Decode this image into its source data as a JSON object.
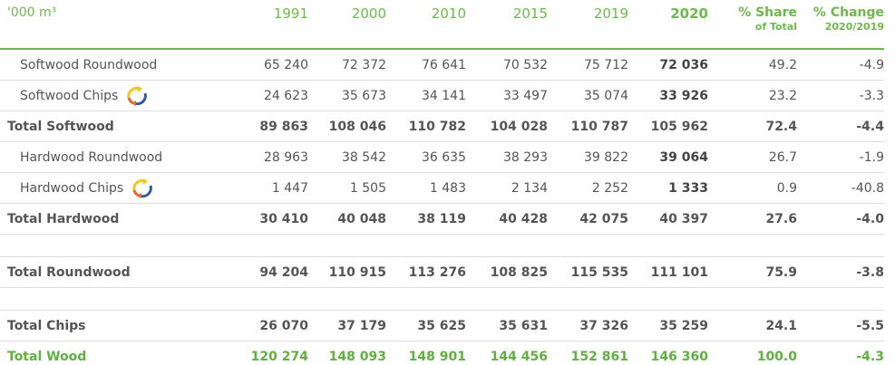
{
  "table": {
    "header": {
      "unit": "'000 m³",
      "years": [
        "1991",
        "2000",
        "2010",
        "2015",
        "2019",
        "2020"
      ],
      "share": [
        "% Share",
        "of Total"
      ],
      "change": [
        "% Change",
        "2020/2019"
      ]
    },
    "rows": [
      {
        "label": "Softwood Roundwood",
        "values": [
          "65 240",
          "72 372",
          "76 641",
          "70 532",
          "75 712",
          "72 036",
          "49.2",
          "-4.9"
        ]
      },
      {
        "label": "Softwood Chips",
        "values": [
          "24 623",
          "35 673",
          "34 141",
          "33 497",
          "35 074",
          "33 926",
          "23.2",
          "-3.3"
        ]
      },
      {
        "label": "Total Softwood",
        "values": [
          "89 863",
          "108 046",
          "110 782",
          "104 028",
          "110 787",
          "105 962",
          "72.4",
          "-4.4"
        ]
      },
      {
        "label": "Hardwood Roundwood",
        "values": [
          "28 963",
          "38 542",
          "36 635",
          "38 293",
          "39 822",
          "39 064",
          "26.7",
          "-1.9"
        ]
      },
      {
        "label": "Hardwood Chips",
        "values": [
          "1 447",
          "1 505",
          "1 483",
          "2 134",
          "2 252",
          "1 333",
          "0.9",
          "-40.8"
        ]
      },
      {
        "label": "Total Hardwood",
        "values": [
          "30 410",
          "40 048",
          "38 119",
          "40 428",
          "42 075",
          "40 397",
          "27.6",
          "-4.0"
        ]
      },
      {
        "label": "Total Roundwood",
        "values": [
          "94 204",
          "110 915",
          "113 276",
          "108 825",
          "115 535",
          "111 101",
          "75.9",
          "-3.8"
        ]
      },
      {
        "label": "Total Chips",
        "values": [
          "26 070",
          "37 179",
          "35 625",
          "35 631",
          "37 326",
          "35 259",
          "24.1",
          "-5.5"
        ]
      },
      {
        "label": "Total Wood",
        "values": [
          "120 274",
          "148 093",
          "148 901",
          "144 456",
          "152 861",
          "146 360",
          "100.0",
          "-4.3"
        ]
      }
    ]
  }
}
